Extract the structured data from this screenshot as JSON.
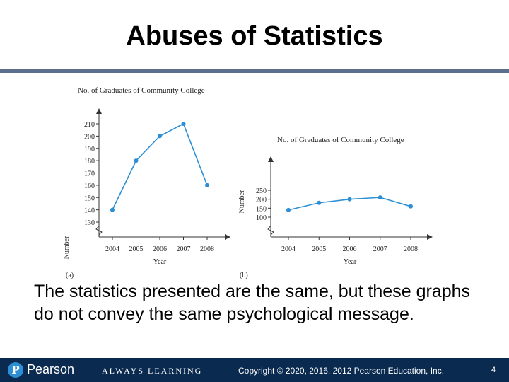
{
  "slide": {
    "title": "Abuses of Statistics",
    "caption": "The statistics presented are the same, but these graphs do not convey the same psychological message."
  },
  "footer": {
    "logo_text": "Pearson",
    "tagline": "ALWAYS LEARNING",
    "copyright": "Copyright © 2020, 2016, 2012 Pearson Education, Inc.",
    "page_number": "4",
    "bar_color": "#0a2a50",
    "accent_color": "#2c8fd6"
  },
  "chart_data": [
    {
      "type": "line",
      "panel_label": "(a)",
      "title": "No. of Graduates of Community College",
      "xlabel": "Year",
      "ylabel": "Number",
      "x": [
        "2004",
        "2005",
        "2006",
        "2007",
        "2008"
      ],
      "values": [
        140,
        180,
        200,
        210,
        160
      ],
      "yticks": [
        130,
        140,
        150,
        160,
        170,
        180,
        190,
        200,
        210
      ],
      "ylim": [
        130,
        210
      ],
      "axis_break": true,
      "color": "#2c8fd6"
    },
    {
      "type": "line",
      "panel_label": "(b)",
      "title": "No. of Graduates of Community College",
      "xlabel": "Year",
      "ylabel": "Number",
      "x": [
        "2004",
        "2005",
        "2006",
        "2007",
        "2008"
      ],
      "values": [
        140,
        180,
        200,
        210,
        160
      ],
      "yticks": [
        100,
        150,
        200,
        250
      ],
      "ylim": [
        100,
        250
      ],
      "axis_break": true,
      "color": "#2c8fd6"
    }
  ]
}
